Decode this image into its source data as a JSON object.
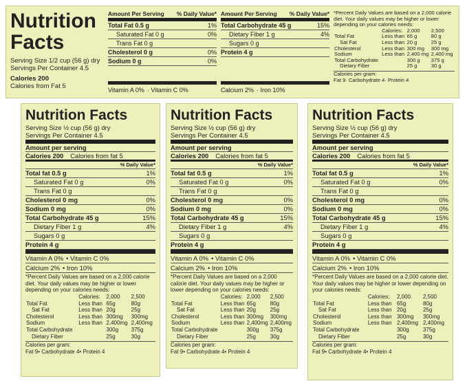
{
  "top_label": {
    "title": "Nutrition Facts",
    "serving_size": "Serving Size 1/2 cup (56 g) dry",
    "servings": "Servings Per Container 4.5",
    "calories": "Calories 200",
    "calories_fat": "Calories from Fat 5",
    "columns": [
      {
        "header": [
          "Amount Per Serving",
          "% Daily Value*"
        ],
        "rows": [
          {
            "name": "Total Fat 0.5 g",
            "dv": "1%"
          },
          {
            "name": "Saturated Fat 0 g",
            "dv": "0%",
            "indent": true
          },
          {
            "name": "Trans Fat 0 g",
            "indent": true
          },
          {
            "name": "Cholesterol 0 g",
            "dv": "0%"
          },
          {
            "name": "Sodium 0 g",
            "dv": "0%"
          }
        ],
        "footer": [
          "Vitamin A 0%",
          "Vitamin C 0%"
        ]
      },
      {
        "header": [
          "Amount Per Serving",
          "% Daily Value*"
        ],
        "rows": [
          {
            "name": "Total Carbohydrate 45 g",
            "dv": "15%"
          },
          {
            "name": "Dietary Fiber 1 g",
            "dv": "4%",
            "indent": true
          },
          {
            "name": "Sugars 0 g",
            "indent": true
          },
          {
            "name": "Protein 4 g"
          }
        ],
        "footer": [
          "Calcium 2%",
          "Iron 10%"
        ]
      }
    ],
    "note": "*Percent Daily Values are based on a 2,000 calorie diet. Your daily values may be higher or lower depending on your calories needs:",
    "dv_table": {
      "header": [
        "Calories:",
        "2,000",
        "2,500"
      ],
      "rows": [
        {
          "nutrient": "Total Fat",
          "limit": "Less than",
          "v1": "65 g",
          "v2": "80 g"
        },
        {
          "nutrient": "Sat Fat",
          "limit": "Less than",
          "v1": "20 g",
          "v2": "25 g",
          "indent": true
        },
        {
          "nutrient": "Cholesterol",
          "limit": "Less than",
          "v1": "300 mg",
          "v2": "300 mg"
        },
        {
          "nutrient": "Sodium",
          "limit": "Less than",
          "v1": "2,400 mg",
          "v2": "2,400 mg"
        },
        {
          "nutrient": "Total Carbohydrate",
          "v1": "300 g",
          "v2": "375 g"
        },
        {
          "nutrient": "Dietary Fiber",
          "v1": "25 g",
          "v2": "30 g",
          "indent": true
        }
      ]
    },
    "per_gram_title": "Calories per gram:",
    "per_gram": [
      "Fat 9",
      "Carbohydrate 4",
      "Protein 4"
    ]
  },
  "labels": [
    {
      "title": "Nutrition Facts",
      "serving_size": "Serving Size ½ cup (56 g) dry",
      "servings": "Servings Per Container 4.5",
      "amount": "Amount per serving",
      "calories": "Calories 200",
      "calories_fat": "Calories from fat 5",
      "dv_header": "% Daily Value*",
      "rows": [
        {
          "name": "Total fat 0.5 g",
          "dv": "1%"
        },
        {
          "name": "Saturated Fat 0 g",
          "dv": "0%",
          "indent": true
        },
        {
          "name": "Trans Fat 0 g",
          "indent": true
        },
        {
          "name": "Cholesterol 0 mg",
          "dv": "0%"
        },
        {
          "name": "Sodium 0 mg",
          "dv": "0%"
        },
        {
          "name": "Total Carbohydrate 45 g",
          "dv": "15%"
        },
        {
          "name": "Dietary Fiber 1 g",
          "dv": "4%",
          "indent": true
        },
        {
          "name": "Sugars 0 g",
          "indent": true
        },
        {
          "name": "Protein 4 g"
        }
      ],
      "vitamins": [
        "Vitamin A 0%",
        "Vitamin C 0%"
      ],
      "minerals": [
        "Calcium 2%",
        "Iron 10%"
      ],
      "note": "*Percent Daily Values are based on a 2,000 calorie diet. Your daily values may be higher or lower depending on your calories needs:",
      "dv_table": {
        "header": [
          "Calories:",
          "2,000",
          "2,500"
        ],
        "rows": [
          {
            "nutrient": "Total Fat",
            "limit": "Less than",
            "v1": "65g",
            "v2": "80g"
          },
          {
            "nutrient": "Sat Fat",
            "limit": "Less than",
            "v1": "20g",
            "v2": "25g",
            "indent": true
          },
          {
            "nutrient": "Cholesterol",
            "limit": "Less than",
            "v1": "300mg",
            "v2": "300mg"
          },
          {
            "nutrient": "Sodium",
            "limit": "Less than",
            "v1": "2,400mg",
            "v2": "2,400mg"
          },
          {
            "nutrient": "Total Carbohydrate",
            "v1": "300g",
            "v2": "375g"
          },
          {
            "nutrient": "Dietary Fiber",
            "v1": "25g",
            "v2": "30g",
            "indent": true
          }
        ]
      },
      "per_gram_title": "Calories per gram:",
      "per_gram": [
        "Fat 9",
        "Carbohydrate 4",
        "Protein 4"
      ]
    },
    {
      "title": "Nutrition Facts",
      "serving_size": "Serving Size ½ cup (56 g) dry",
      "servings": "Servings Per Container 4.5",
      "amount": "Amount per serving",
      "calories": "Calories 200",
      "calories_fat": "Calories from fat 5",
      "dv_header": "% Daily Value*",
      "rows": [
        {
          "name": "Total fat 0.5 g",
          "dv": "1%"
        },
        {
          "name": "Saturated Fat 0 g",
          "dv": "0%",
          "indent": true
        },
        {
          "name": "Trans Fat 0 g",
          "indent": true
        },
        {
          "name": "Cholesterol 0 mg",
          "dv": "0%"
        },
        {
          "name": "Sodium 0 mg",
          "dv": "0%"
        },
        {
          "name": "Total Carbohydrate 45 g",
          "dv": "15%"
        },
        {
          "name": "Dietary Fiber 1 g",
          "dv": "4%",
          "indent": true
        },
        {
          "name": "Sugars 0 g",
          "indent": true
        },
        {
          "name": "Protein 4 g"
        }
      ],
      "vitamins": [
        "Vitamin A 0%",
        "Vitamin C 0%"
      ],
      "minerals": [
        "Calcium 2%",
        "Iron 10%"
      ],
      "note": "*Percent Daily Values are based on a 2,000 calorie diet. Your daily values may be higher or lower depending on your calories needs:",
      "dv_table": {
        "header": [
          "Calories:",
          "2,000",
          "2,500"
        ],
        "rows": [
          {
            "nutrient": "Total Fat",
            "limit": "Less than",
            "v1": "65g",
            "v2": "80g"
          },
          {
            "nutrient": "Sat Fat",
            "limit": "Less than",
            "v1": "20g",
            "v2": "25g",
            "indent": true
          },
          {
            "nutrient": "Cholesterol",
            "limit": "Less than",
            "v1": "300mg",
            "v2": "300mg"
          },
          {
            "nutrient": "Sodium",
            "limit": "Less than",
            "v1": "2,400mg",
            "v2": "2,400mg"
          },
          {
            "nutrient": "Total Carbohydrate",
            "v1": "300g",
            "v2": "375g"
          },
          {
            "nutrient": "Dietary Fiber",
            "v1": "25g",
            "v2": "30g",
            "indent": true
          }
        ]
      },
      "per_gram_title": "Calories per gram:",
      "per_gram": [
        "Fat 9",
        "Carbohydrate 4",
        "Protein 4"
      ]
    },
    {
      "title": "Nutrition Facts",
      "serving_size": "Serving Size ½ cup (56 g) dry",
      "servings": "Servings Per Container 4.5",
      "amount": "Amount per serving",
      "calories": "Calories 200",
      "calories_fat": "Calories from fat 5",
      "dv_header": "% Daily Value*",
      "rows": [
        {
          "name": "Total fat 0.5 g",
          "dv": "1%"
        },
        {
          "name": "Saturated Fat 0 g",
          "dv": "0%",
          "indent": true
        },
        {
          "name": "Trans Fat 0 g",
          "indent": true
        },
        {
          "name": "Cholesterol 0 mg",
          "dv": "0%"
        },
        {
          "name": "Sodium 0 mg",
          "dv": "0%"
        },
        {
          "name": "Total Carbohydrate 45 g",
          "dv": "15%"
        },
        {
          "name": "Dietary Fiber 1 g",
          "dv": "4%",
          "indent": true
        },
        {
          "name": "Sugars 0 g",
          "indent": true
        },
        {
          "name": "Protein 4 g"
        }
      ],
      "vitamins": [
        "Vitamin A 0%",
        "Vitamin C 0%"
      ],
      "minerals": [
        "Calcium 2%",
        "Iron 10%"
      ],
      "note": "*Percent Daily Values are based on a 2,000 calorie diet. Your daily values may be higher or lower depending on your calories needs:",
      "dv_table": {
        "header": [
          "Calories:",
          "2,000",
          "2,500"
        ],
        "rows": [
          {
            "nutrient": "Total Fat",
            "limit": "Less than",
            "v1": "65g",
            "v2": "80g"
          },
          {
            "nutrient": "Sat Fat",
            "limit": "Less than",
            "v1": "20g",
            "v2": "25g",
            "indent": true
          },
          {
            "nutrient": "Cholesterol",
            "limit": "Less than",
            "v1": "300mg",
            "v2": "300mg"
          },
          {
            "nutrient": "Sodium",
            "limit": "Less than",
            "v1": "2,400mg",
            "v2": "2,400mg"
          },
          {
            "nutrient": "Total Carbohydrate",
            "v1": "300g",
            "v2": "375g"
          },
          {
            "nutrient": "Dietary Fiber",
            "v1": "25g",
            "v2": "30g",
            "indent": true
          }
        ]
      },
      "per_gram_title": "Calories per gram:",
      "per_gram": [
        "Fat 9",
        "Carbohydrate 4",
        "Protein 4"
      ]
    }
  ]
}
